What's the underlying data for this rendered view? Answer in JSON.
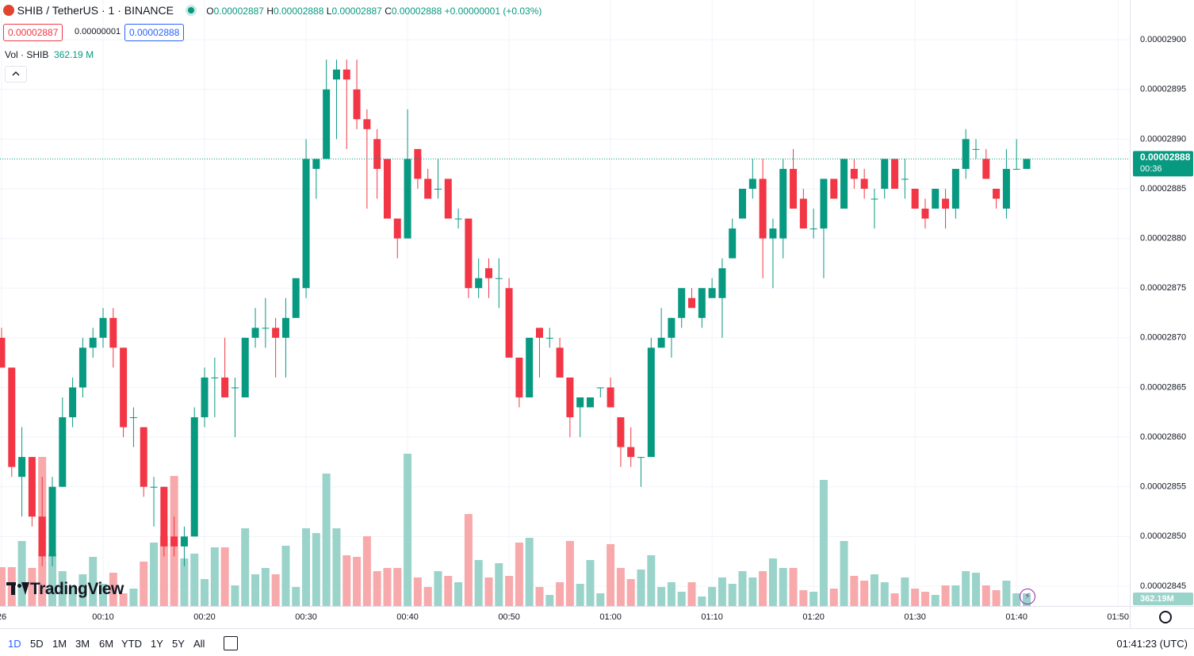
{
  "chart_data": {
    "type": "candlestick",
    "title": "SHIB / TetherUS · 1 · BINANCE",
    "x": [
      "00:00",
      "00:01",
      "00:02",
      "00:03",
      "00:04",
      "00:05",
      "00:06",
      "00:07",
      "00:08",
      "00:09",
      "00:10",
      "00:11",
      "00:12",
      "00:13",
      "00:14",
      "00:15",
      "00:16",
      "00:17",
      "00:18",
      "00:19",
      "00:20",
      "00:21",
      "00:22",
      "00:23",
      "00:24",
      "00:25",
      "00:26",
      "00:27",
      "00:28",
      "00:29",
      "00:30",
      "00:31",
      "00:32",
      "00:33",
      "00:34",
      "00:35",
      "00:36",
      "00:37",
      "00:38",
      "00:39",
      "00:40",
      "00:41",
      "00:42",
      "00:43",
      "00:44",
      "00:45",
      "00:46",
      "00:47",
      "00:48",
      "00:49",
      "00:50",
      "00:51",
      "00:52",
      "00:53",
      "00:54",
      "00:55",
      "00:56",
      "00:57",
      "00:58",
      "00:59",
      "01:00",
      "01:01",
      "01:02",
      "01:03",
      "01:04",
      "01:05",
      "01:06",
      "01:07",
      "01:08",
      "01:09",
      "01:10",
      "01:11",
      "01:12",
      "01:13",
      "01:14",
      "01:15",
      "01:16",
      "01:17",
      "01:18",
      "01:19",
      "01:20",
      "01:21",
      "01:22",
      "01:23",
      "01:24",
      "01:25",
      "01:26",
      "01:27",
      "01:28",
      "01:29",
      "01:30",
      "01:31",
      "01:32",
      "01:33",
      "01:34",
      "01:35",
      "01:36",
      "01:37",
      "01:38",
      "01:39",
      "01:40",
      "01:41"
    ],
    "open": [
      2.87e-05,
      2.867e-05,
      2.856e-05,
      2.858e-05,
      2.852e-05,
      2.848e-05,
      2.855e-05,
      2.862e-05,
      2.865e-05,
      2.869e-05,
      2.87e-05,
      2.872e-05,
      2.869e-05,
      2.862e-05,
      2.861e-05,
      2.855e-05,
      2.855e-05,
      2.85e-05,
      2.849e-05,
      2.85e-05,
      2.862e-05,
      2.866e-05,
      2.866e-05,
      2.865e-05,
      2.864e-05,
      2.87e-05,
      2.871e-05,
      2.871e-05,
      2.87e-05,
      2.872e-05,
      2.875e-05,
      2.887e-05,
      2.888e-05,
      2.896e-05,
      2.897e-05,
      2.895e-05,
      2.892e-05,
      2.89e-05,
      2.888e-05,
      2.882e-05,
      2.88e-05,
      2.889e-05,
      2.886e-05,
      2.885e-05,
      2.886e-05,
      2.882e-05,
      2.882e-05,
      2.875e-05,
      2.877e-05,
      2.876e-05,
      2.875e-05,
      2.868e-05,
      2.864e-05,
      2.871e-05,
      2.87e-05,
      2.869e-05,
      2.866e-05,
      2.863e-05,
      2.863e-05,
      2.865e-05,
      2.865e-05,
      2.862e-05,
      2.859e-05,
      2.858e-05,
      2.858e-05,
      2.869e-05,
      2.87e-05,
      2.872e-05,
      2.874e-05,
      2.872e-05,
      2.874e-05,
      2.874e-05,
      2.878e-05,
      2.882e-05,
      2.885e-05,
      2.886e-05,
      2.88e-05,
      2.88e-05,
      2.887e-05,
      2.884e-05,
      2.881e-05,
      2.881e-05,
      2.886e-05,
      2.883e-05,
      2.887e-05,
      2.886e-05,
      2.884e-05,
      2.885e-05,
      2.888e-05,
      2.886e-05,
      2.885e-05,
      2.883e-05,
      2.883e-05,
      2.884e-05,
      2.883e-05,
      2.887e-05,
      2.889e-05,
      2.888e-05,
      2.885e-05,
      2.883e-05,
      2.887e-05,
      2.887e-05
    ],
    "high": [
      2.871e-05,
      2.867e-05,
      2.861e-05,
      2.858e-05,
      2.856e-05,
      2.856e-05,
      2.864e-05,
      2.866e-05,
      2.87e-05,
      2.871e-05,
      2.873e-05,
      2.873e-05,
      2.869e-05,
      2.863e-05,
      2.861e-05,
      2.856e-05,
      2.855e-05,
      2.852e-05,
      2.851e-05,
      2.863e-05,
      2.867e-05,
      2.868e-05,
      2.87e-05,
      2.866e-05,
      2.87e-05,
      2.873e-05,
      2.874e-05,
      2.872e-05,
      2.874e-05,
      2.876e-05,
      2.89e-05,
      2.888e-05,
      2.898e-05,
      2.898e-05,
      2.898e-05,
      2.898e-05,
      2.893e-05,
      2.891e-05,
      2.888e-05,
      2.882e-05,
      2.893e-05,
      2.889e-05,
      2.887e-05,
      2.888e-05,
      2.886e-05,
      2.883e-05,
      2.882e-05,
      2.878e-05,
      2.878e-05,
      2.878e-05,
      2.876e-05,
      2.868e-05,
      2.87e-05,
      2.871e-05,
      2.871e-05,
      2.87e-05,
      2.866e-05,
      2.864e-05,
      2.864e-05,
      2.865e-05,
      2.866e-05,
      2.862e-05,
      2.861e-05,
      2.858e-05,
      2.87e-05,
      2.873e-05,
      2.872e-05,
      2.875e-05,
      2.875e-05,
      2.875e-05,
      2.876e-05,
      2.878e-05,
      2.882e-05,
      2.885e-05,
      2.888e-05,
      2.888e-05,
      2.882e-05,
      2.888e-05,
      2.889e-05,
      2.885e-05,
      2.883e-05,
      2.886e-05,
      2.886e-05,
      2.888e-05,
      2.888e-05,
      2.887e-05,
      2.885e-05,
      2.888e-05,
      2.888e-05,
      2.888e-05,
      2.885e-05,
      2.884e-05,
      2.885e-05,
      2.885e-05,
      2.887e-05,
      2.891e-05,
      2.89e-05,
      2.889e-05,
      2.885e-05,
      2.889e-05,
      2.89e-05,
      2.888e-05
    ],
    "low": [
      2.867e-05,
      2.856e-05,
      2.852e-05,
      2.851e-05,
      2.847e-05,
      2.847e-05,
      2.855e-05,
      2.861e-05,
      2.864e-05,
      2.868e-05,
      2.869e-05,
      2.867e-05,
      2.86e-05,
      2.859e-05,
      2.854e-05,
      2.851e-05,
      2.848e-05,
      2.848e-05,
      2.847e-05,
      2.85e-05,
      2.861e-05,
      2.862e-05,
      2.864e-05,
      2.86e-05,
      2.864e-05,
      2.869e-05,
      2.869e-05,
      2.866e-05,
      2.866e-05,
      2.872e-05,
      2.874e-05,
      2.884e-05,
      2.888e-05,
      2.89e-05,
      2.889e-05,
      2.891e-05,
      2.883e-05,
      2.884e-05,
      2.882e-05,
      2.878e-05,
      2.88e-05,
      2.885e-05,
      2.884e-05,
      2.884e-05,
      2.882e-05,
      2.881e-05,
      2.874e-05,
      2.874e-05,
      2.874e-05,
      2.873e-05,
      2.868e-05,
      2.863e-05,
      2.864e-05,
      2.866e-05,
      2.869e-05,
      2.866e-05,
      2.86e-05,
      2.86e-05,
      2.863e-05,
      2.864e-05,
      2.863e-05,
      2.857e-05,
      2.857e-05,
      2.855e-05,
      2.858e-05,
      2.869e-05,
      2.868e-05,
      2.871e-05,
      2.873e-05,
      2.871e-05,
      2.874e-05,
      2.87e-05,
      2.878e-05,
      2.882e-05,
      2.884e-05,
      2.876e-05,
      2.875e-05,
      2.878e-05,
      2.883e-05,
      2.881e-05,
      2.88e-05,
      2.876e-05,
      2.884e-05,
      2.883e-05,
      2.885e-05,
      2.884e-05,
      2.881e-05,
      2.884e-05,
      2.885e-05,
      2.884e-05,
      2.883e-05,
      2.881e-05,
      2.883e-05,
      2.881e-05,
      2.882e-05,
      2.886e-05,
      2.888e-05,
      2.886e-05,
      2.883e-05,
      2.882e-05,
      2.887e-05,
      2.887e-05
    ],
    "close": [
      2.867e-05,
      2.857e-05,
      2.858e-05,
      2.852e-05,
      2.848e-05,
      2.855e-05,
      2.862e-05,
      2.865e-05,
      2.869e-05,
      2.87e-05,
      2.872e-05,
      2.869e-05,
      2.861e-05,
      2.862e-05,
      2.855e-05,
      2.855e-05,
      2.849e-05,
      2.849e-05,
      2.85e-05,
      2.862e-05,
      2.866e-05,
      2.866e-05,
      2.864e-05,
      2.865e-05,
      2.87e-05,
      2.871e-05,
      2.871e-05,
      2.87e-05,
      2.872e-05,
      2.876e-05,
      2.888e-05,
      2.888e-05,
      2.895e-05,
      2.897e-05,
      2.896e-05,
      2.892e-05,
      2.891e-05,
      2.887e-05,
      2.882e-05,
      2.88e-05,
      2.888e-05,
      2.886e-05,
      2.884e-05,
      2.885e-05,
      2.882e-05,
      2.882e-05,
      2.875e-05,
      2.876e-05,
      2.876e-05,
      2.876e-05,
      2.868e-05,
      2.864e-05,
      2.87e-05,
      2.87e-05,
      2.87e-05,
      2.866e-05,
      2.862e-05,
      2.864e-05,
      2.864e-05,
      2.865e-05,
      2.863e-05,
      2.859e-05,
      2.858e-05,
      2.858e-05,
      2.869e-05,
      2.87e-05,
      2.872e-05,
      2.875e-05,
      2.873e-05,
      2.875e-05,
      2.875e-05,
      2.877e-05,
      2.881e-05,
      2.885e-05,
      2.886e-05,
      2.88e-05,
      2.881e-05,
      2.887e-05,
      2.883e-05,
      2.881e-05,
      2.881e-05,
      2.886e-05,
      2.884e-05,
      2.888e-05,
      2.886e-05,
      2.885e-05,
      2.884e-05,
      2.888e-05,
      2.885e-05,
      2.886e-05,
      2.883e-05,
      2.882e-05,
      2.885e-05,
      2.883e-05,
      2.887e-05,
      2.89e-05,
      2.889e-05,
      2.886e-05,
      2.884e-05,
      2.887e-05,
      2.887e-05,
      2.888e-05
    ],
    "volume": [
      1107,
      1107,
      1853,
      1085,
      4249,
      1492,
      994,
      542,
      904,
      1401,
      633,
      949,
      362,
      497,
      1266,
      1808,
      1989,
      3706,
      1356,
      1492,
      768,
      1672,
      1672,
      588,
      2215,
      904,
      1085,
      904,
      1718,
      542,
      2215,
      2079,
      3774,
      2215,
      1446,
      1401,
      1989,
      994,
      1085,
      1085,
      4339,
      814,
      542,
      994,
      859,
      678,
      2622,
      1311,
      814,
      1220,
      859,
      1808,
      1944,
      542,
      316,
      678,
      1853,
      633,
      1311,
      362,
      1763,
      1085,
      768,
      1040,
      1446,
      542,
      678,
      407,
      678,
      271,
      542,
      814,
      633,
      994,
      814,
      994,
      1356,
      1085,
      1085,
      452,
      407,
      3593,
      497,
      1853,
      859,
      723,
      904,
      678,
      362,
      814,
      497,
      407,
      316,
      588,
      588,
      994,
      949,
      588,
      452,
      723,
      362,
      362.19
    ],
    "up_color": "#089981",
    "down_color": "#f23645",
    "volume_up_color": "#9ad3ca",
    "volume_down_color": "#f8a9ab",
    "ylim": [
      2.843e-05,
      2.904e-05
    ],
    "yticks": [
      {
        "value": 2.845e-05,
        "label": "0.00002845"
      },
      {
        "value": 2.85e-05,
        "label": "0.00002850"
      },
      {
        "value": 2.855e-05,
        "label": "0.00002855"
      },
      {
        "value": 2.86e-05,
        "label": "0.00002860"
      },
      {
        "value": 2.865e-05,
        "label": "0.00002865"
      },
      {
        "value": 2.87e-05,
        "label": "0.00002870"
      },
      {
        "value": 2.875e-05,
        "label": "0.00002875"
      },
      {
        "value": 2.88e-05,
        "label": "0.00002880"
      },
      {
        "value": 2.885e-05,
        "label": "0.00002885"
      },
      {
        "value": 2.89e-05,
        "label": "0.00002890"
      },
      {
        "value": 2.895e-05,
        "label": "0.00002895"
      },
      {
        "value": 2.9e-05,
        "label": "0.00002900"
      }
    ],
    "xlim": [
      "00:00",
      "01:51"
    ],
    "xticks": [
      {
        "value": "00:00",
        "label": "26"
      },
      "00:10",
      "00:20",
      "00:30",
      "00:40",
      "00:50",
      "01:00",
      "01:10",
      "01:20",
      "01:30",
      "01:40",
      "01:50"
    ],
    "grid": true
  },
  "ui": {
    "ohlc_labels": [
      "O",
      "H",
      "L",
      "C"
    ],
    "change": "+0.00000001 (+0.03%)",
    "bid": "0.00002887",
    "spread": "0.00000001",
    "ask": "0.00002888",
    "volume_title": "Vol · SHIB",
    "volume_legend": "362.19 M",
    "volume_badge": "362.19M",
    "countdown": "00:36",
    "logo": "TradingView",
    "ranges": [
      "1D",
      "5D",
      "1M",
      "3M",
      "6M",
      "YTD",
      "1Y",
      "5Y",
      "All"
    ],
    "clock": "01:41:23 (UTC)"
  }
}
